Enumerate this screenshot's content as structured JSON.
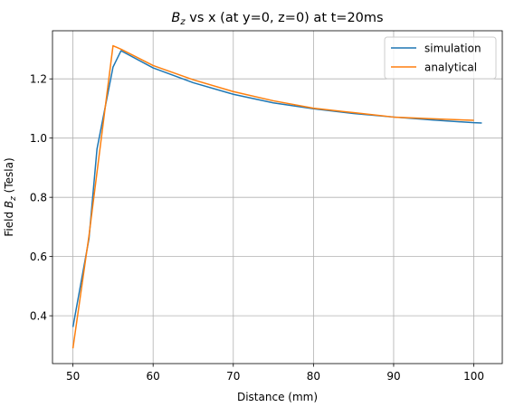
{
  "chart_data": {
    "type": "line",
    "title": {
      "base": "B",
      "sub": "z",
      "rest": " vs x (at y=0, z=0) at t=20ms"
    },
    "xlabel": "Distance (mm)",
    "ylabel": {
      "pre": "Field ",
      "base": "B",
      "sub": "z",
      "post": " (Tesla)"
    },
    "xlim": [
      47.45,
      103.55
    ],
    "ylim": [
      0.2385,
      1.3625
    ],
    "xticks": [
      50,
      60,
      70,
      80,
      90,
      100
    ],
    "yticks": [
      0.4,
      0.6,
      0.8,
      1.0,
      1.2
    ],
    "ytick_labels": [
      "0.4",
      "0.6",
      "0.8",
      "1.0",
      "1.2"
    ],
    "grid": true,
    "legend_position": "top-right",
    "series": [
      {
        "name": "simulation",
        "color": "#1f77b4",
        "x": [
          50,
          52,
          53,
          55,
          56,
          60,
          65,
          70,
          75,
          80,
          85,
          90,
          95,
          100,
          101
        ],
        "y": [
          0.362,
          0.66,
          0.963,
          1.24,
          1.295,
          1.237,
          1.187,
          1.148,
          1.119,
          1.099,
          1.083,
          1.071,
          1.061,
          1.052,
          1.051
        ]
      },
      {
        "name": "analytical",
        "color": "#ff7f0e",
        "x": [
          50,
          52,
          55,
          56,
          60,
          65,
          70,
          75,
          80,
          85,
          90,
          95,
          100
        ],
        "y": [
          0.29,
          0.67,
          1.312,
          1.3,
          1.245,
          1.197,
          1.157,
          1.126,
          1.101,
          1.086,
          1.071,
          1.065,
          1.06
        ]
      }
    ]
  }
}
